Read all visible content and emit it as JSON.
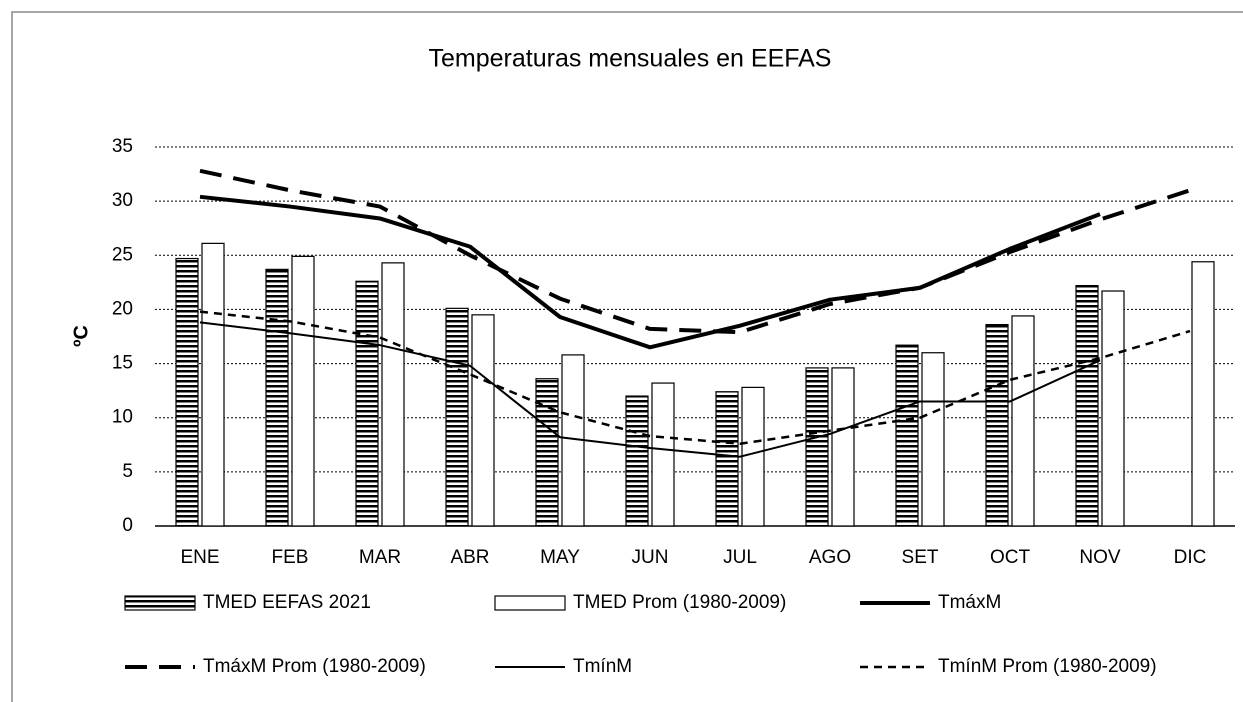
{
  "chart_data": {
    "type": "bar",
    "title": "Temperaturas   mensuales en EEFAS",
    "y_label": "ºC",
    "categories": [
      "ENE",
      "FEB",
      "MAR",
      "ABR",
      "MAY",
      "JUN",
      "JUL",
      "AGO",
      "SET",
      "OCT",
      "NOV",
      "DIC"
    ],
    "ylim": [
      0,
      35
    ],
    "yticks": [
      0,
      5,
      10,
      15,
      20,
      25,
      30,
      35
    ],
    "grid": true,
    "legend": "bottom",
    "series": [
      {
        "name": "TMED EEFAS 2021",
        "kind": "bar",
        "fill": "striped",
        "color": "#000000",
        "values": [
          24.7,
          23.7,
          22.6,
          20.1,
          13.6,
          12.0,
          12.4,
          14.6,
          16.7,
          18.6,
          22.2,
          null
        ]
      },
      {
        "name": "TMED Prom (1980-2009)",
        "kind": "bar",
        "fill": "white",
        "color": "#000000",
        "values": [
          26.1,
          24.9,
          24.3,
          19.5,
          15.8,
          13.2,
          12.8,
          14.6,
          16.0,
          19.4,
          21.7,
          24.4
        ]
      },
      {
        "name": "TmáxM",
        "kind": "line",
        "dash": "solid",
        "width": 4,
        "color": "#000000",
        "values": [
          30.4,
          29.5,
          28.4,
          25.8,
          19.3,
          16.5,
          18.5,
          20.9,
          22.0,
          25.6,
          28.8,
          null
        ]
      },
      {
        "name": "TmáxM Prom (1980-2009)",
        "kind": "line",
        "dash": "dashed",
        "width": 4,
        "color": "#000000",
        "values": [
          32.8,
          31.0,
          29.5,
          25.0,
          21.0,
          18.2,
          17.9,
          20.5,
          22.0,
          25.3,
          28.3,
          31.0
        ]
      },
      {
        "name": "TmínM",
        "kind": "line",
        "dash": "solid",
        "width": 2,
        "color": "#000000",
        "values": [
          18.8,
          17.8,
          16.7,
          14.8,
          8.2,
          7.2,
          6.4,
          8.5,
          11.5,
          11.5,
          15.3,
          null
        ]
      },
      {
        "name": "TmínM Prom (1980-2009)",
        "kind": "line",
        "dash": "dashed",
        "width": 2.5,
        "color": "#000000",
        "values": [
          19.8,
          18.9,
          17.4,
          14.0,
          10.5,
          8.3,
          7.6,
          8.8,
          10.0,
          13.5,
          15.5,
          18.0
        ]
      }
    ]
  }
}
